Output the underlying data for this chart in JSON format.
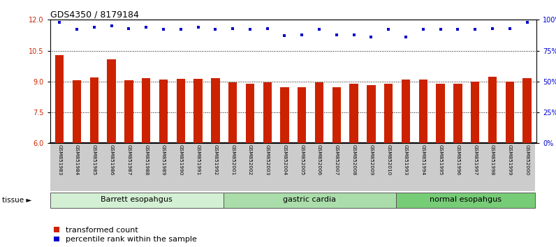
{
  "title": "GDS4350 / 8179184",
  "samples": [
    "GSM851983",
    "GSM851984",
    "GSM851985",
    "GSM851986",
    "GSM851987",
    "GSM851988",
    "GSM851989",
    "GSM851990",
    "GSM851991",
    "GSM851992",
    "GSM852001",
    "GSM852002",
    "GSM852003",
    "GSM852004",
    "GSM852005",
    "GSM852006",
    "GSM852007",
    "GSM852008",
    "GSM852009",
    "GSM852010",
    "GSM851993",
    "GSM851994",
    "GSM851995",
    "GSM851996",
    "GSM851997",
    "GSM851998",
    "GSM851999",
    "GSM852000"
  ],
  "bar_values": [
    10.28,
    9.05,
    9.2,
    10.08,
    9.05,
    9.15,
    9.08,
    9.12,
    9.12,
    9.15,
    8.95,
    8.88,
    8.95,
    8.72,
    8.72,
    8.95,
    8.72,
    8.88,
    8.82,
    8.88,
    9.08,
    9.08,
    8.88,
    8.88,
    8.98,
    9.22,
    8.98,
    9.18
  ],
  "percentile_values": [
    98,
    92,
    94,
    95,
    93,
    94,
    92,
    92,
    94,
    92,
    93,
    92,
    93,
    87,
    88,
    92,
    88,
    88,
    86,
    92,
    86,
    92,
    92,
    92,
    92,
    93,
    93,
    98
  ],
  "tissue_groups": [
    {
      "label": "Barrett esopahgus",
      "start": 0,
      "end": 10,
      "color": "#d4f0d4"
    },
    {
      "label": "gastric cardia",
      "start": 10,
      "end": 20,
      "color": "#aaddaa"
    },
    {
      "label": "normal esopahgus",
      "start": 20,
      "end": 28,
      "color": "#77cc77"
    }
  ],
  "bar_color": "#cc2200",
  "dot_color": "#0000cc",
  "ylim_left": [
    6,
    12
  ],
  "ylim_right": [
    0,
    100
  ],
  "yticks_left": [
    6,
    7.5,
    9.0,
    10.5,
    12
  ],
  "yticks_right": [
    0,
    25,
    50,
    75,
    100
  ],
  "grid_values": [
    7.5,
    9.0,
    10.5
  ],
  "bar_width": 0.5,
  "dot_size": 12,
  "xtick_bg_color": "#cccccc",
  "tissue_label_fontsize": 8,
  "tick_fontsize": 7,
  "title_fontsize": 9,
  "legend_fontsize": 8,
  "xtick_fontsize": 5.2
}
